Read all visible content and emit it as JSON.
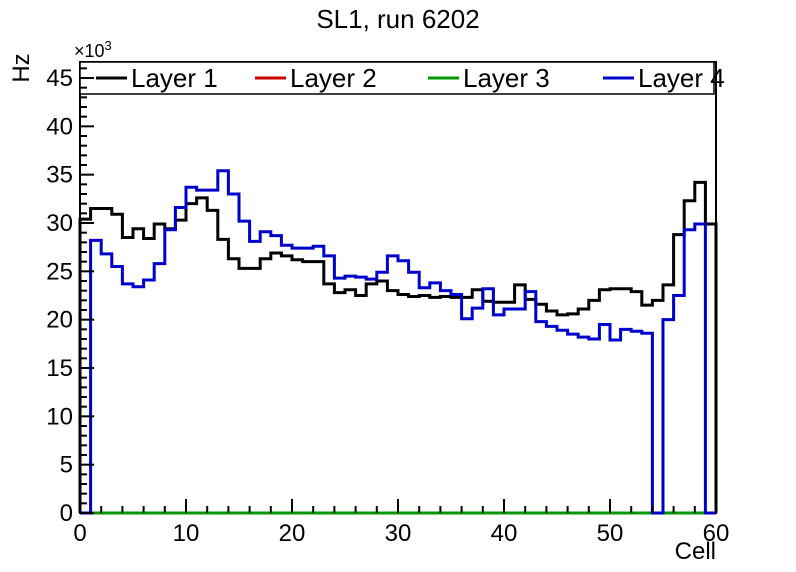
{
  "title": "SL1, run 6202",
  "axes": {
    "x": {
      "title": "Cell",
      "min": 0,
      "max": 60,
      "major_ticks": [
        0,
        10,
        20,
        30,
        40,
        50,
        60
      ],
      "minor_step": 2
    },
    "y": {
      "title": "Hz",
      "exponent_base": "×10",
      "exponent": "3",
      "min": 0,
      "max": 46.7,
      "major_ticks": [
        0,
        5,
        10,
        15,
        20,
        25,
        30,
        35,
        40,
        45
      ],
      "minor_step": 1
    }
  },
  "legend": {
    "entries": [
      {
        "label": "Layer 1",
        "color": "#000000"
      },
      {
        "label": "Layer 2",
        "color": "#cc0000"
      },
      {
        "label": "Layer 3",
        "color": "#009900"
      },
      {
        "label": "Layer 4",
        "color": "#0000cc"
      }
    ]
  },
  "chart_data": {
    "type": "step-histogram",
    "title": "SL1, run 6202",
    "xlabel": "Cell",
    "ylabel": "Hz",
    "y_unit_multiplier": "1e3",
    "n_bins": 60,
    "x_range": [
      0,
      60
    ],
    "y_range": [
      0,
      46.7
    ],
    "legend_position": "top-full-width",
    "grid": false,
    "series": [
      {
        "name": "Layer 1",
        "color": "#000000",
        "values": [
          30.4,
          31.5,
          31.5,
          30.9,
          28.5,
          29.4,
          28.4,
          29.9,
          29.4,
          30.3,
          32.0,
          32.6,
          31.3,
          28.3,
          26.3,
          25.3,
          25.3,
          26.3,
          26.9,
          26.6,
          26.2,
          26.0,
          26.0,
          23.7,
          22.8,
          23.1,
          22.5,
          23.7,
          24.0,
          23.0,
          22.6,
          22.4,
          22.5,
          22.3,
          22.4,
          22.3,
          22.3,
          23.1,
          21.9,
          21.8,
          21.8,
          23.6,
          22.1,
          21.6,
          20.9,
          20.5,
          20.6,
          21.1,
          22.0,
          23.1,
          23.2,
          23.2,
          22.9,
          21.5,
          22.0,
          23.6,
          28.8,
          32.3,
          34.2,
          29.9
        ]
      },
      {
        "name": "Layer 2",
        "color": "#cc0000",
        "values": [
          0,
          0,
          0,
          0,
          0,
          0,
          0,
          0,
          0,
          0,
          0,
          0,
          0,
          0,
          0,
          0,
          0,
          0,
          0,
          0,
          0,
          0,
          0,
          0,
          0,
          0,
          0,
          0,
          0,
          0,
          0,
          0,
          0,
          0,
          0,
          0,
          0,
          0,
          0,
          0,
          0,
          0,
          0,
          0,
          0,
          0,
          0,
          0,
          0,
          0,
          0,
          0,
          0,
          0,
          0,
          0,
          0,
          0,
          0,
          0
        ]
      },
      {
        "name": "Layer 3",
        "color": "#009900",
        "values": [
          0,
          0,
          0,
          0,
          0,
          0,
          0,
          0,
          0,
          0,
          0,
          0,
          0,
          0,
          0,
          0,
          0,
          0,
          0,
          0,
          0,
          0,
          0,
          0,
          0,
          0,
          0,
          0,
          0,
          0,
          0,
          0,
          0,
          0,
          0,
          0,
          0,
          0,
          0,
          0,
          0,
          0,
          0,
          0,
          0,
          0,
          0,
          0,
          0,
          0,
          0,
          0,
          0,
          0,
          0,
          0,
          0,
          0,
          0,
          0
        ]
      },
      {
        "name": "Layer 4",
        "color": "#0000cc",
        "values": [
          0,
          28.2,
          26.8,
          25.5,
          23.7,
          23.4,
          24.1,
          25.8,
          29.3,
          31.6,
          33.7,
          33.4,
          33.4,
          35.4,
          33.0,
          30.2,
          28.1,
          29.1,
          28.7,
          27.7,
          27.4,
          27.4,
          27.6,
          26.6,
          24.3,
          24.5,
          24.4,
          24.2,
          24.9,
          26.6,
          26.1,
          24.9,
          23.3,
          23.8,
          23.0,
          22.6,
          20.1,
          21.2,
          23.2,
          20.5,
          21.1,
          21.1,
          22.9,
          19.8,
          19.3,
          18.9,
          18.5,
          18.2,
          18.0,
          19.5,
          17.9,
          19.0,
          18.8,
          18.6,
          0,
          20.0,
          22.5,
          29.3,
          29.9,
          0
        ]
      }
    ]
  }
}
